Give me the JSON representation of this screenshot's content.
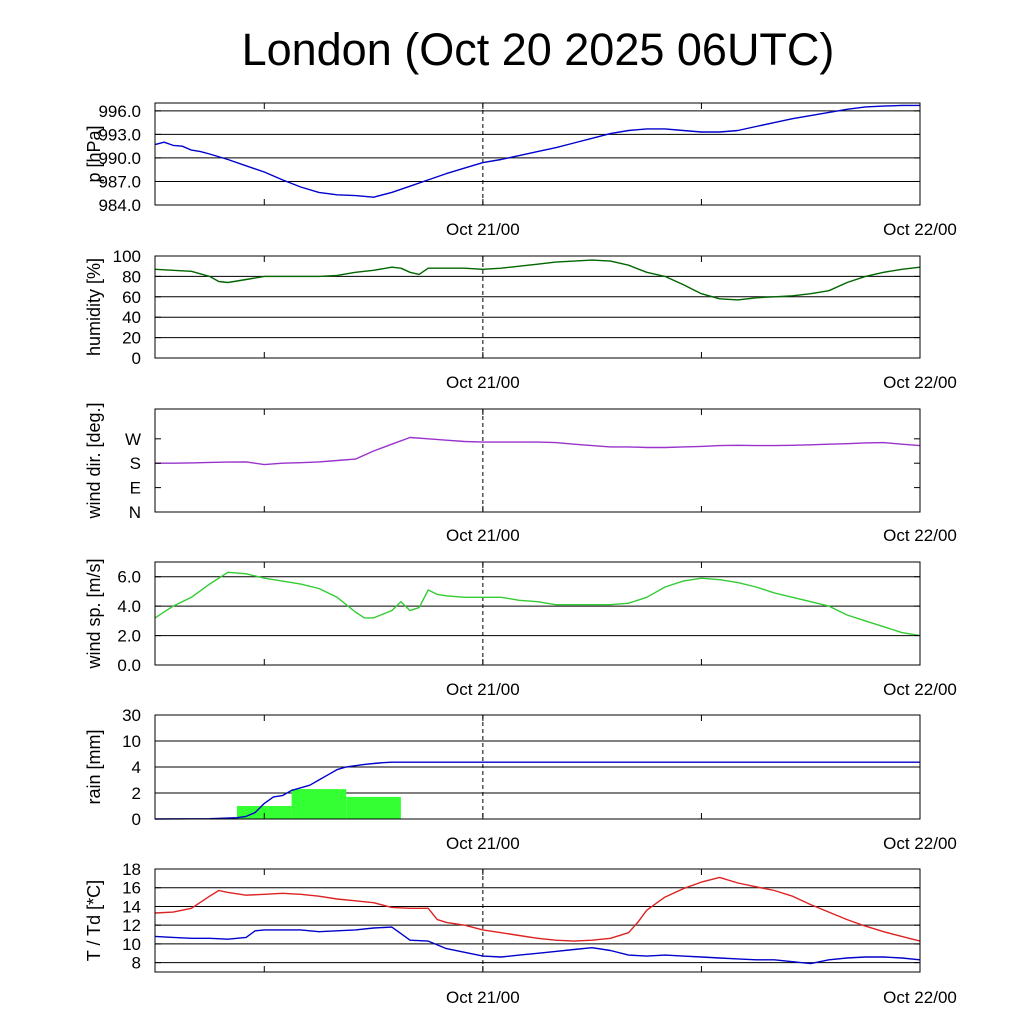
{
  "title": "London (Oct 20 2025 06UTC)",
  "time_axis": {
    "start_hours": 0,
    "end_hours": 42,
    "midnight_hours": 18,
    "minor_tick_hours": [
      6,
      30
    ],
    "major_ticks": [
      {
        "hours": 18,
        "label": "Oct 21/00"
      },
      {
        "hours": 42,
        "label": "Oct 22/00"
      }
    ]
  },
  "chart_data": [
    {
      "type": "line",
      "name": "pressure",
      "ylabel": "p [hPa]",
      "ylim": [
        984.0,
        997.0
      ],
      "yticks": [
        984.0,
        987.0,
        990.0,
        993.0,
        996.0
      ],
      "ytick_labels": [
        "984.0",
        "987.0",
        "990.0",
        "993.0",
        "996.0"
      ],
      "grid": true,
      "color": "#0000cc",
      "series": [
        {
          "x": [
            0,
            0.5,
            1,
            1.5,
            2,
            2.5,
            3,
            4,
            5,
            6,
            7,
            8,
            9,
            10,
            11,
            12,
            13,
            14,
            15,
            16,
            17,
            18,
            19,
            20,
            21,
            22,
            23,
            24,
            25,
            26,
            27,
            28,
            29,
            30,
            31,
            32,
            33,
            34,
            35,
            36,
            37,
            38,
            39,
            40,
            41,
            42
          ],
          "values": [
            991.7,
            992.0,
            991.6,
            991.5,
            991.0,
            990.8,
            990.5,
            989.8,
            989.0,
            988.2,
            987.2,
            986.3,
            985.6,
            985.3,
            985.2,
            985.0,
            985.6,
            986.4,
            987.2,
            988.0,
            988.7,
            989.4,
            989.8,
            990.3,
            990.8,
            991.3,
            991.9,
            992.5,
            993.1,
            993.5,
            993.7,
            993.7,
            993.5,
            993.3,
            993.3,
            993.5,
            994.0,
            994.5,
            995.0,
            995.4,
            995.8,
            996.2,
            996.5,
            996.6,
            996.7,
            996.7
          ]
        }
      ]
    },
    {
      "type": "line",
      "name": "humidity",
      "ylabel": "humidity [%]",
      "ylim": [
        0,
        100
      ],
      "yticks": [
        0,
        20,
        40,
        60,
        80,
        100
      ],
      "ytick_labels": [
        "0",
        "20",
        "40",
        "60",
        "80",
        "100"
      ],
      "grid": true,
      "color": "#006600",
      "series": [
        {
          "x": [
            0,
            1,
            2,
            3,
            3.5,
            4,
            5,
            6,
            7,
            8,
            9,
            10,
            11,
            12,
            13,
            13.5,
            14,
            14.5,
            15,
            16,
            17,
            18,
            19,
            20,
            21,
            22,
            23,
            24,
            25,
            26,
            27,
            28,
            29,
            30,
            31,
            32,
            33,
            34,
            35,
            36,
            37,
            38,
            39,
            40,
            41,
            42
          ],
          "values": [
            87,
            86,
            85,
            80,
            75,
            74,
            77,
            80,
            80,
            80,
            80,
            81,
            84,
            86,
            89,
            88,
            84,
            82,
            88,
            88,
            88,
            87,
            88,
            90,
            92,
            94,
            95,
            96,
            95,
            91,
            84,
            80,
            72,
            63,
            58,
            57,
            59,
            60,
            61,
            63,
            66,
            74,
            80,
            84,
            87,
            89
          ]
        }
      ]
    },
    {
      "type": "line",
      "name": "wind-direction",
      "ylabel": "wind dir. [deg.]",
      "ylim": [
        0,
        380
      ],
      "yticks": [
        0,
        90,
        180,
        270
      ],
      "ytick_labels": [
        "N",
        "E",
        "S",
        "W"
      ],
      "grid": false,
      "color": "#9933cc",
      "series": [
        {
          "x": [
            0,
            1,
            2,
            3,
            4,
            5,
            6,
            7,
            8,
            9,
            10,
            11,
            12,
            13,
            14,
            15,
            16,
            17,
            18,
            19,
            20,
            21,
            22,
            23,
            24,
            25,
            26,
            27,
            28,
            29,
            30,
            31,
            32,
            33,
            34,
            35,
            36,
            37,
            38,
            39,
            40,
            41,
            42
          ],
          "values": [
            180,
            180,
            181,
            183,
            184,
            185,
            175,
            180,
            182,
            185,
            190,
            195,
            225,
            250,
            275,
            270,
            265,
            260,
            258,
            258,
            258,
            258,
            256,
            250,
            245,
            240,
            240,
            238,
            238,
            240,
            242,
            245,
            246,
            245,
            245,
            246,
            248,
            250,
            252,
            255,
            256,
            250,
            245
          ]
        }
      ]
    },
    {
      "type": "line",
      "name": "wind-speed",
      "ylabel": "wind sp. [m/s]",
      "ylim": [
        0,
        7
      ],
      "yticks": [
        0,
        2,
        4,
        6
      ],
      "ytick_labels": [
        "0.0",
        "2.0",
        "4.0",
        "6.0"
      ],
      "grid": true,
      "color": "#33cc33",
      "series": [
        {
          "x": [
            0,
            1,
            2,
            3,
            4,
            5,
            6,
            7,
            8,
            9,
            10,
            11,
            11.5,
            12,
            13,
            13.5,
            14,
            14.5,
            15,
            15.5,
            16,
            17,
            18,
            19,
            20,
            21,
            22,
            23,
            24,
            25,
            26,
            27,
            28,
            29,
            30,
            31,
            32,
            33,
            34,
            35,
            36,
            37,
            38,
            39,
            40,
            41,
            42
          ],
          "values": [
            3.2,
            4.0,
            4.6,
            5.5,
            6.3,
            6.2,
            5.9,
            5.7,
            5.5,
            5.2,
            4.6,
            3.6,
            3.2,
            3.2,
            3.7,
            4.3,
            3.7,
            3.9,
            5.1,
            4.8,
            4.7,
            4.6,
            4.6,
            4.6,
            4.4,
            4.3,
            4.1,
            4.1,
            4.1,
            4.1,
            4.2,
            4.6,
            5.3,
            5.7,
            5.9,
            5.8,
            5.6,
            5.3,
            4.9,
            4.6,
            4.3,
            4.0,
            3.4,
            3.0,
            2.6,
            2.2,
            2.0
          ]
        }
      ]
    },
    {
      "type": "bar",
      "name": "rain",
      "ylabel": "rain [mm]",
      "ylim": [
        0,
        30
      ],
      "yticks": [
        0,
        2,
        4,
        10,
        30
      ],
      "ytick_labels": [
        "0",
        "2",
        "4",
        "10",
        "30"
      ],
      "grid": true,
      "scale": "piecewise",
      "bar_color": "#33ff33",
      "line_color": "#0000cc",
      "bars": [
        {
          "x_start": 4.5,
          "x_end": 7.5,
          "value": 1.0
        },
        {
          "x_start": 7.5,
          "x_end": 10.5,
          "value": 2.3
        },
        {
          "x_start": 10.5,
          "x_end": 13.5,
          "value": 1.7
        }
      ],
      "series": [
        {
          "name": "accumulated",
          "x": [
            0,
            3,
            4.5,
            5,
            5.5,
            6,
            6.5,
            7,
            7.5,
            8,
            8.5,
            9,
            9.5,
            10,
            10.5,
            11,
            11.5,
            12,
            12.5,
            13,
            14,
            16,
            18,
            20,
            24,
            28,
            32,
            36,
            40,
            42
          ],
          "values": [
            0,
            0.02,
            0.1,
            0.2,
            0.5,
            1.2,
            1.7,
            1.8,
            2.2,
            2.4,
            2.6,
            3.0,
            3.4,
            3.8,
            4.0,
            4.3,
            4.6,
            4.8,
            5.0,
            5.1,
            5.1,
            5.1,
            5.1,
            5.1,
            5.1,
            5.1,
            5.1,
            5.1,
            5.1,
            5.1
          ]
        }
      ]
    },
    {
      "type": "line",
      "name": "temperature-dewpoint",
      "ylabel": "T / Td [*C]",
      "ylim": [
        7,
        18
      ],
      "yticks": [
        8,
        10,
        12,
        14,
        16,
        18
      ],
      "ytick_labels": [
        "8",
        "10",
        "12",
        "14",
        "16",
        "18"
      ],
      "grid": true,
      "series": [
        {
          "name": "T",
          "color": "#dd2222",
          "x": [
            0,
            1,
            2,
            3,
            3.5,
            4,
            5,
            6,
            7,
            8,
            9,
            10,
            11,
            12,
            13,
            14,
            15,
            15.5,
            16,
            17,
            18,
            19,
            20,
            21,
            22,
            23,
            24,
            25,
            26,
            26.5,
            27,
            27.5,
            28,
            29,
            30,
            31,
            32,
            33,
            34,
            35,
            36,
            37,
            38,
            39,
            40,
            41,
            42
          ],
          "values": [
            13.3,
            13.4,
            13.8,
            15.1,
            15.7,
            15.5,
            15.2,
            15.3,
            15.4,
            15.3,
            15.1,
            14.8,
            14.6,
            14.4,
            13.9,
            13.8,
            13.8,
            12.6,
            12.3,
            12.0,
            11.5,
            11.2,
            10.9,
            10.6,
            10.4,
            10.3,
            10.4,
            10.6,
            11.2,
            12.3,
            13.6,
            14.3,
            15.0,
            15.9,
            16.6,
            17.1,
            16.5,
            16.1,
            15.7,
            15.1,
            14.2,
            13.4,
            12.6,
            11.9,
            11.3,
            10.8,
            10.3
          ]
        },
        {
          "name": "Td",
          "color": "#0000cc",
          "x": [
            0,
            1,
            2,
            3,
            4,
            5,
            5.5,
            6,
            7,
            8,
            9,
            10,
            11,
            12,
            13,
            13.5,
            14,
            15,
            16,
            17,
            18,
            19,
            20,
            21,
            22,
            23,
            24,
            25,
            26,
            27,
            28,
            29,
            30,
            31,
            32,
            33,
            34,
            35,
            36,
            37,
            38,
            39,
            40,
            41,
            42
          ],
          "values": [
            10.8,
            10.7,
            10.6,
            10.6,
            10.5,
            10.7,
            11.4,
            11.5,
            11.5,
            11.5,
            11.3,
            11.4,
            11.5,
            11.7,
            11.8,
            11.1,
            10.4,
            10.3,
            9.5,
            9.1,
            8.7,
            8.6,
            8.8,
            9.0,
            9.2,
            9.4,
            9.6,
            9.3,
            8.8,
            8.7,
            8.8,
            8.7,
            8.6,
            8.5,
            8.4,
            8.3,
            8.3,
            8.1,
            7.9,
            8.3,
            8.5,
            8.6,
            8.6,
            8.5,
            8.3
          ]
        }
      ]
    }
  ]
}
